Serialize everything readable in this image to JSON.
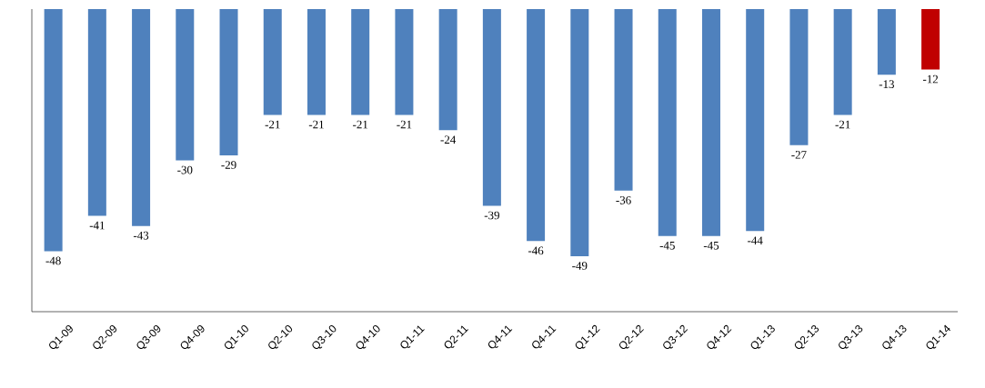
{
  "chart_data": {
    "type": "bar",
    "categories": [
      "Q1-09",
      "Q2-09",
      "Q3-09",
      "Q4-09",
      "Q1-10",
      "Q2-10",
      "Q3-10",
      "Q4-10",
      "Q1-11",
      "Q2-11",
      "Q4-11",
      "Q4-11",
      "Q1-12",
      "Q2-12",
      "Q3-12",
      "Q4-12",
      "Q1-13",
      "Q2-13",
      "Q3-13",
      "Q4-13",
      "Q1-14"
    ],
    "values": [
      -48,
      -41,
      -43,
      -30,
      -29,
      -21,
      -21,
      -21,
      -21,
      -24,
      -39,
      -46,
      -49,
      -36,
      -45,
      -45,
      -44,
      -27,
      -21,
      -13,
      -12
    ],
    "colors": [
      "#4f81bd",
      "#4f81bd",
      "#4f81bd",
      "#4f81bd",
      "#4f81bd",
      "#4f81bd",
      "#4f81bd",
      "#4f81bd",
      "#4f81bd",
      "#4f81bd",
      "#4f81bd",
      "#4f81bd",
      "#4f81bd",
      "#4f81bd",
      "#4f81bd",
      "#4f81bd",
      "#4f81bd",
      "#4f81bd",
      "#4f81bd",
      "#4f81bd",
      "#c00000"
    ],
    "ylim": [
      -60,
      0
    ],
    "data_labels": true,
    "tick_labels": "x",
    "grid": false
  }
}
